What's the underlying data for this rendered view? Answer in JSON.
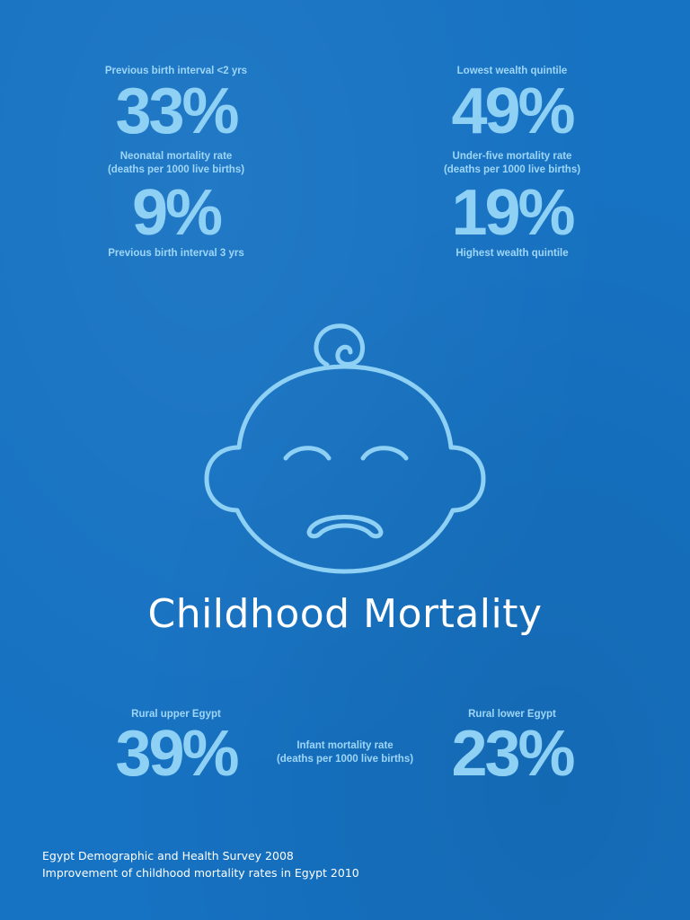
{
  "top_left": {
    "label_above": "Previous birth interval <2 yrs",
    "value_1": "33%",
    "metric_line1": "Neonatal mortality rate",
    "metric_line2": "(deaths per 1000 live births)",
    "value_2": "9%",
    "label_below": "Previous birth interval 3 yrs"
  },
  "top_right": {
    "label_above": "Lowest wealth quintile",
    "value_1": "49%",
    "metric_line1": "Under-five mortality rate",
    "metric_line2": "(deaths per 1000 live births)",
    "value_2": "19%",
    "label_below": "Highest wealth quintile"
  },
  "illustration": {
    "icon": "crying-baby-face-icon",
    "line_color": "#8fd0f5"
  },
  "title": "Childhood Mortality",
  "bottom": {
    "left_label": "Rural upper Egypt",
    "left_value": "39%",
    "center_line1": "Infant mortality rate",
    "center_line2": "(deaths per 1000 live births)",
    "right_label": "Rural lower Egypt",
    "right_value": "23%"
  },
  "sources": [
    "Egypt Demographic and Health Survey 2008",
    "Improvement of childhood mortality rates in Egypt 2010"
  ],
  "colors": {
    "background": "#1672c2",
    "stat_text": "#8fd0f5",
    "title_text": "#ffffff"
  }
}
